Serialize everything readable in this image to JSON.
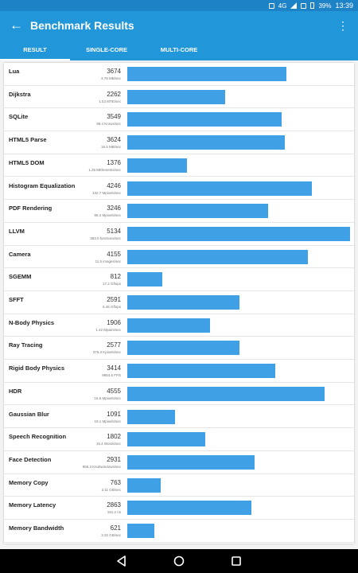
{
  "status_bar": {
    "network": "4G",
    "battery": "39%",
    "time": "13:39"
  },
  "app_bar": {
    "title": "Benchmark Results"
  },
  "tabs": [
    {
      "label": "RESULT",
      "selected": true
    },
    {
      "label": "SINGLE-CORE",
      "selected": false
    },
    {
      "label": "MULTI-CORE",
      "selected": false
    }
  ],
  "max_score": 5134,
  "results": [
    {
      "name": "Lua",
      "score": "3674",
      "rate": "3.78 MB/sec"
    },
    {
      "name": "Dijkstra",
      "score": "2262",
      "rate": "1.53 MTE/sec"
    },
    {
      "name": "SQLite",
      "score": "3549",
      "rate": "98.4 Krows/sec"
    },
    {
      "name": "HTML5 Parse",
      "score": "3624",
      "rate": "16.5 MB/sec"
    },
    {
      "name": "HTML5 DOM",
      "score": "1376",
      "rate": "1.25 MElements/sec"
    },
    {
      "name": "Histogram Equalization",
      "score": "4246",
      "rate": "132.7 Mpixels/sec"
    },
    {
      "name": "PDF Rendering",
      "score": "3246",
      "rate": "86.2 Mpixels/sec"
    },
    {
      "name": "LLVM",
      "score": "5134",
      "rate": "353.0 functions/sec"
    },
    {
      "name": "Camera",
      "score": "4155",
      "rate": "11.5 images/sec"
    },
    {
      "name": "SGEMM",
      "score": "812",
      "rate": "17.2 Gflops"
    },
    {
      "name": "SFFT",
      "score": "2591",
      "rate": "6.46 Gflops"
    },
    {
      "name": "N-Body Physics",
      "score": "1906",
      "rate": "1.42 Mpairs/sec"
    },
    {
      "name": "Ray Tracing",
      "score": "2577",
      "rate": "376.3 Kpixels/sec"
    },
    {
      "name": "Rigid Body Physics",
      "score": "3414",
      "rate": "9954.5 FPS"
    },
    {
      "name": "HDR",
      "score": "4555",
      "rate": "16.5 Mpixels/sec"
    },
    {
      "name": "Gaussian Blur",
      "score": "1091",
      "rate": "19.1 Mpixels/sec"
    },
    {
      "name": "Speech Recognition",
      "score": "1802",
      "rate": "15.4 Words/sec"
    },
    {
      "name": "Face Detection",
      "score": "2931",
      "rate": "856.3 Ksubwindows/sec"
    },
    {
      "name": "Memory Copy",
      "score": "763",
      "rate": "2.11 GB/sec"
    },
    {
      "name": "Memory Latency",
      "score": "2863",
      "rate": "151.2 ns"
    },
    {
      "name": "Memory Bandwidth",
      "score": "621",
      "rate": "3.32 GB/sec"
    }
  ],
  "colors": {
    "app_bar": "#2196d8",
    "status_bar": "#1e82c6",
    "bar": "#3fa0e6"
  },
  "icons": {
    "back": "arrow-left-icon",
    "more": "more-vert-icon",
    "nav": [
      "back-triangle-icon",
      "home-circle-icon",
      "recents-square-icon"
    ]
  }
}
